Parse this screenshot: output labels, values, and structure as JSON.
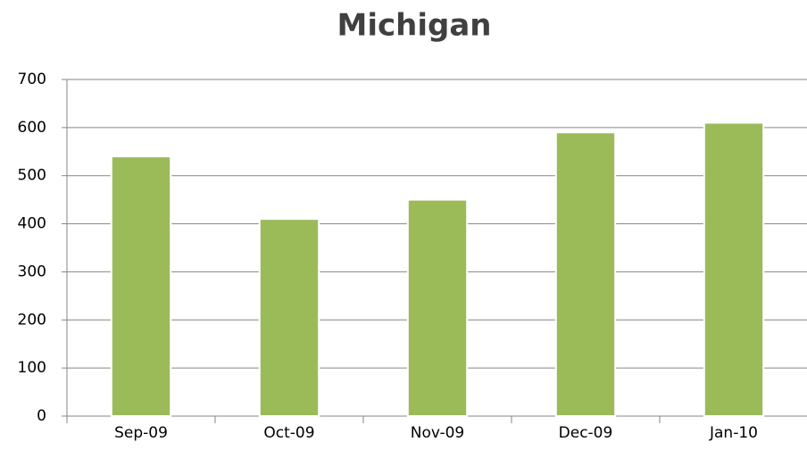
{
  "chart_data": {
    "type": "bar",
    "title": "Michigan",
    "categories": [
      "Sep-09",
      "Oct-09",
      "Nov-09",
      "Dec-09",
      "Jan-10"
    ],
    "values": [
      540,
      410,
      450,
      590,
      610
    ],
    "color": "#9bbb59",
    "ylim": [
      0,
      700
    ],
    "yticks": [
      0,
      100,
      200,
      300,
      400,
      500,
      600,
      700
    ],
    "grid": true
  }
}
